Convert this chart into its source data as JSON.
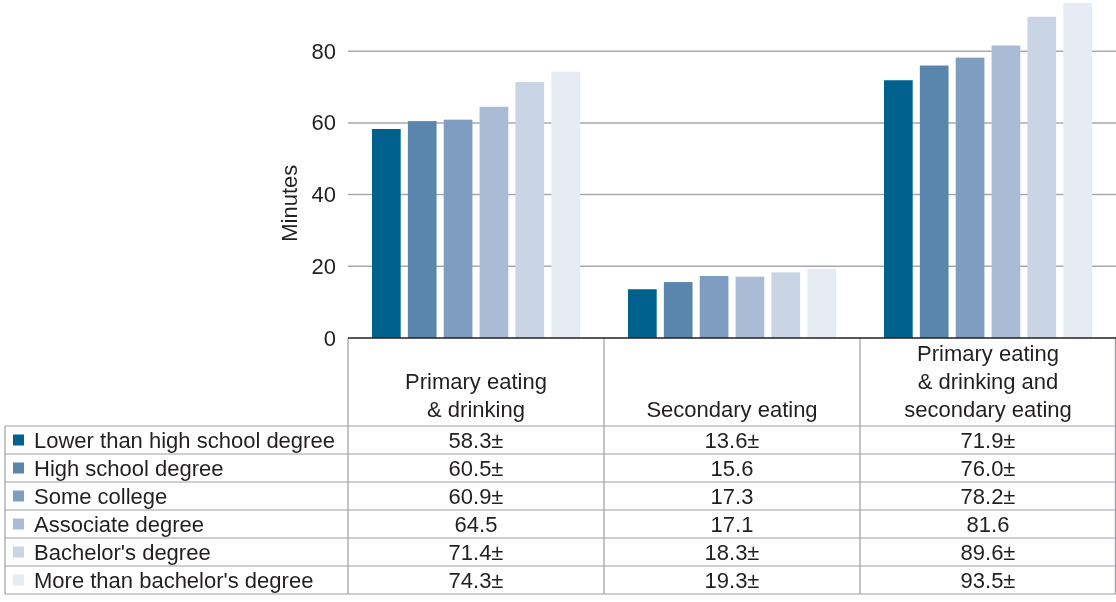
{
  "chart_data": {
    "type": "bar",
    "ylabel": "Minutes",
    "categories": [
      "Primary eating\n& drinking",
      "Secondary eating",
      "Primary eating\n& drinking and\nsecondary eating"
    ],
    "ylim": [
      0,
      94
    ],
    "yticks": [
      0,
      20,
      40,
      60,
      80
    ],
    "grid": "y",
    "legend": "bottom",
    "series": [
      {
        "name": "Lower than high school degree",
        "color": "#00618f",
        "values": [
          58.3,
          13.6,
          71.9
        ],
        "value_labels": [
          "58.3±",
          "13.6±",
          "71.9±"
        ]
      },
      {
        "name": "High school degree",
        "color": "#5a86ae",
        "values": [
          60.5,
          15.6,
          76.0
        ],
        "value_labels": [
          "60.5±",
          "15.6",
          "76.0±"
        ]
      },
      {
        "name": "Some college",
        "color": "#7e9dc0",
        "values": [
          60.9,
          17.3,
          78.2
        ],
        "value_labels": [
          "60.9±",
          "17.3",
          "78.2±"
        ]
      },
      {
        "name": "Associate degree",
        "color": "#a9bbd5",
        "values": [
          64.5,
          17.1,
          81.6
        ],
        "value_labels": [
          "64.5",
          "17.1",
          "81.6"
        ]
      },
      {
        "name": "Bachelor's degree",
        "color": "#c9d5e5",
        "values": [
          71.4,
          18.3,
          89.6
        ],
        "value_labels": [
          "71.4±",
          "18.3±",
          "89.6±"
        ]
      },
      {
        "name": "More than bachelor's degree",
        "color": "#e7ebf4",
        "values": [
          74.3,
          19.3,
          93.5
        ],
        "value_labels": [
          "74.3±",
          "19.3±",
          "93.5±"
        ]
      }
    ]
  }
}
